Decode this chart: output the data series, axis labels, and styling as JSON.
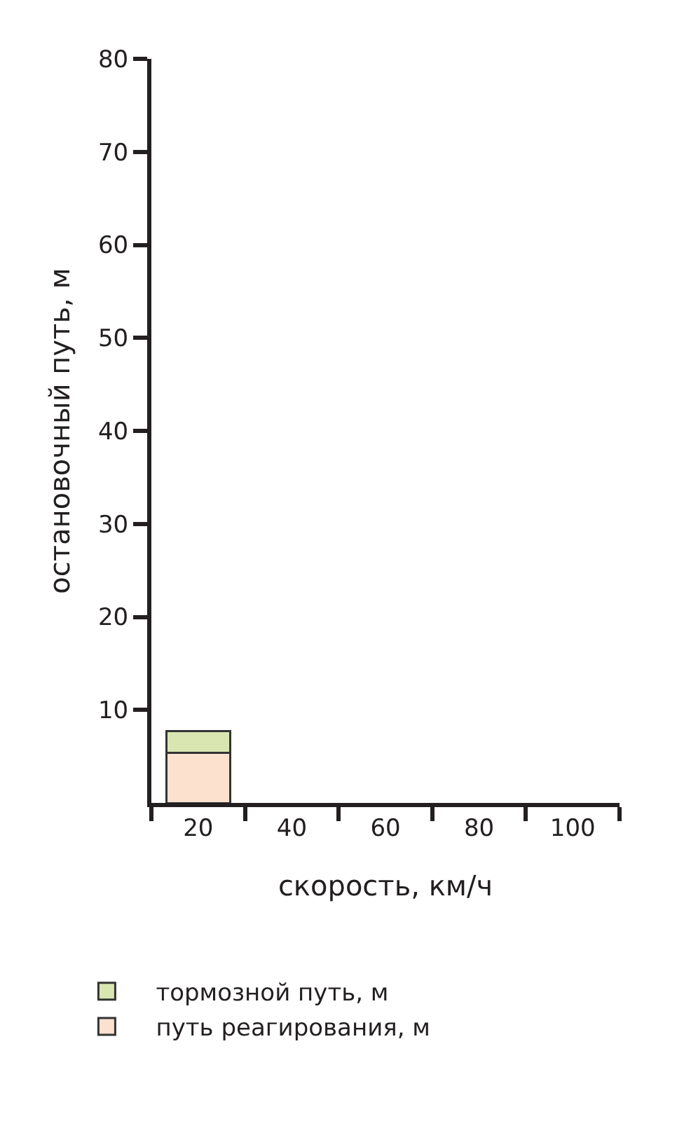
{
  "chart_data": {
    "type": "bar",
    "stacked": true,
    "xlabel": "скорость, км/ч",
    "ylabel": "остановочный путь, м",
    "categories": [
      "20",
      "40",
      "60",
      "80",
      "100"
    ],
    "series": [
      {
        "name": "путь реагирования, м",
        "color": "#fde1cf",
        "values": [
          5.4,
          null,
          null,
          null,
          null
        ]
      },
      {
        "name": "тормозной путь, м",
        "color": "#d9e6b2",
        "values": [
          2.3,
          null,
          null,
          null,
          null
        ]
      }
    ],
    "ylim": [
      0,
      80
    ],
    "yticks": [
      10,
      20,
      30,
      40,
      50,
      60,
      70,
      80
    ],
    "legend": "bottom left"
  }
}
